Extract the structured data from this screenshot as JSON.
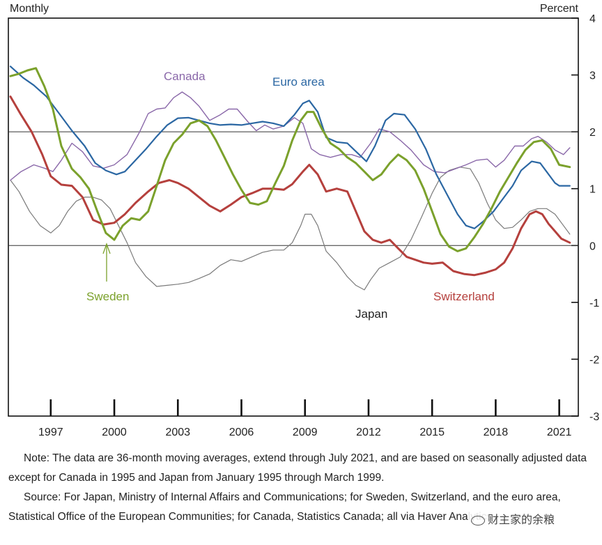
{
  "header": {
    "left_label": "Monthly",
    "right_label": "Percent"
  },
  "chart_data": {
    "type": "line",
    "title": "",
    "xlabel": "",
    "ylabel": "Percent",
    "frequency": "Monthly",
    "xlim": [
      1995.0,
      2021.9
    ],
    "ylim": [
      -3,
      4
    ],
    "x_ticks": [
      1997,
      2000,
      2003,
      2006,
      2009,
      2012,
      2015,
      2018,
      2021
    ],
    "y_ticks": [
      -3,
      -2,
      -1,
      0,
      1,
      2,
      3,
      4
    ],
    "reference_lines": [
      0,
      2
    ],
    "grid": false,
    "series": [
      {
        "name": "Canada",
        "color": "#8a68a9",
        "label_position": "upper-left",
        "x": [
          1995.1,
          1995.6,
          1996.2,
          1996.7,
          1997.1,
          1997.5,
          1998.0,
          1998.5,
          1999.0,
          1999.5,
          2000.0,
          2000.6,
          2001.2,
          2001.6,
          2002.0,
          2002.4,
          2002.8,
          2003.2,
          2003.6,
          2004.0,
          2004.5,
          2005.0,
          2005.4,
          2005.8,
          2006.3,
          2006.7,
          2007.1,
          2007.5,
          2008.0,
          2008.5,
          2008.9,
          2009.3,
          2009.7,
          2010.2,
          2010.7,
          2011.2,
          2011.6,
          2012.1,
          2012.5,
          2013.0,
          2013.5,
          2014.0,
          2014.6,
          2015.1,
          2015.6,
          2016.1,
          2016.6,
          2017.1,
          2017.6,
          2018.0,
          2018.4,
          2018.9,
          2019.3,
          2019.7,
          2020.0,
          2020.4,
          2020.8,
          2021.2,
          2021.5
        ],
        "values": [
          1.15,
          1.3,
          1.42,
          1.36,
          1.3,
          1.5,
          1.8,
          1.65,
          1.4,
          1.36,
          1.42,
          1.6,
          2.0,
          2.32,
          2.4,
          2.42,
          2.6,
          2.7,
          2.6,
          2.45,
          2.2,
          2.3,
          2.4,
          2.4,
          2.18,
          2.02,
          2.12,
          2.05,
          2.1,
          2.25,
          2.15,
          1.7,
          1.6,
          1.55,
          1.6,
          1.6,
          1.55,
          1.8,
          2.05,
          2.0,
          1.85,
          1.68,
          1.42,
          1.3,
          1.28,
          1.35,
          1.42,
          1.5,
          1.52,
          1.38,
          1.5,
          1.75,
          1.75,
          1.88,
          1.92,
          1.82,
          1.68,
          1.6,
          1.72
        ]
      },
      {
        "name": "Euro area",
        "color": "#2b67a3",
        "label_position": "upper-middle",
        "x": [
          1995.1,
          1995.7,
          1996.2,
          1996.8,
          1997.4,
          1998.0,
          1998.6,
          1999.1,
          1999.6,
          2000.1,
          2000.5,
          2001.0,
          2001.5,
          2002.0,
          2002.5,
          2003.0,
          2003.5,
          2004.0,
          2004.5,
          2005.0,
          2005.5,
          2006.0,
          2006.5,
          2007.0,
          2007.5,
          2008.0,
          2008.5,
          2008.9,
          2009.2,
          2009.6,
          2010.0,
          2010.5,
          2011.0,
          2011.5,
          2011.9,
          2012.3,
          2012.8,
          2013.2,
          2013.7,
          2014.2,
          2014.7,
          2015.2,
          2015.7,
          2016.2,
          2016.6,
          2017.0,
          2017.4,
          2017.9,
          2018.3,
          2018.8,
          2019.2,
          2019.7,
          2020.1,
          2020.4,
          2020.8,
          2021.0,
          2021.5
        ],
        "values": [
          3.15,
          2.95,
          2.82,
          2.62,
          2.32,
          2.02,
          1.75,
          1.45,
          1.32,
          1.25,
          1.3,
          1.5,
          1.7,
          1.92,
          2.12,
          2.24,
          2.25,
          2.2,
          2.15,
          2.12,
          2.13,
          2.12,
          2.15,
          2.18,
          2.15,
          2.1,
          2.3,
          2.5,
          2.55,
          2.35,
          1.9,
          1.82,
          1.8,
          1.62,
          1.48,
          1.75,
          2.2,
          2.32,
          2.3,
          2.05,
          1.7,
          1.25,
          0.9,
          0.55,
          0.35,
          0.3,
          0.42,
          0.6,
          0.8,
          1.05,
          1.32,
          1.48,
          1.45,
          1.3,
          1.1,
          1.05,
          1.05
        ]
      },
      {
        "name": "Sweden",
        "color": "#7ba12c",
        "label_position": "lower-left",
        "x": [
          1995.1,
          1995.5,
          1995.9,
          1996.3,
          1996.7,
          1997.1,
          1997.5,
          1998.0,
          1998.4,
          1998.8,
          1999.2,
          1999.6,
          2000.0,
          2000.4,
          2000.8,
          2001.2,
          2001.6,
          2002.0,
          2002.4,
          2002.8,
          2003.2,
          2003.6,
          2004.0,
          2004.4,
          2004.8,
          2005.2,
          2005.6,
          2006.0,
          2006.4,
          2006.8,
          2007.2,
          2007.6,
          2008.0,
          2008.4,
          2008.8,
          2009.1,
          2009.4,
          2009.8,
          2010.2,
          2010.6,
          2011.0,
          2011.4,
          2011.8,
          2012.2,
          2012.6,
          2013.0,
          2013.4,
          2013.8,
          2014.2,
          2014.6,
          2015.0,
          2015.4,
          2015.8,
          2016.2,
          2016.6,
          2017.0,
          2017.4,
          2017.8,
          2018.2,
          2018.6,
          2019.0,
          2019.4,
          2019.8,
          2020.2,
          2020.6,
          2021.0,
          2021.5
        ],
        "values": [
          2.98,
          3.02,
          3.08,
          3.12,
          2.8,
          2.4,
          1.75,
          1.35,
          1.2,
          1.0,
          0.6,
          0.22,
          0.1,
          0.35,
          0.48,
          0.45,
          0.6,
          1.05,
          1.5,
          1.8,
          1.95,
          2.15,
          2.2,
          2.1,
          1.85,
          1.55,
          1.25,
          0.98,
          0.75,
          0.72,
          0.78,
          1.1,
          1.4,
          1.85,
          2.2,
          2.35,
          2.35,
          2.05,
          1.8,
          1.7,
          1.55,
          1.45,
          1.3,
          1.15,
          1.25,
          1.45,
          1.6,
          1.5,
          1.32,
          1.0,
          0.6,
          0.2,
          -0.02,
          -0.1,
          -0.05,
          0.15,
          0.38,
          0.65,
          0.95,
          1.2,
          1.45,
          1.68,
          1.82,
          1.85,
          1.7,
          1.42,
          1.38
        ]
      },
      {
        "name": "Switzerland",
        "color": "#b5403d",
        "label_position": "lower-right",
        "x": [
          1995.1,
          1995.6,
          1996.1,
          1996.6,
          1997.0,
          1997.5,
          1998.0,
          1998.5,
          1999.0,
          1999.5,
          2000.0,
          2000.5,
          2001.0,
          2001.6,
          2002.1,
          2002.6,
          2003.0,
          2003.5,
          2004.0,
          2004.5,
          2005.0,
          2005.5,
          2006.0,
          2006.5,
          2007.0,
          2007.5,
          2008.0,
          2008.4,
          2008.9,
          2009.2,
          2009.6,
          2010.0,
          2010.5,
          2011.0,
          2011.4,
          2011.8,
          2012.2,
          2012.6,
          2013.0,
          2013.4,
          2013.8,
          2014.2,
          2014.6,
          2015.0,
          2015.5,
          2016.0,
          2016.5,
          2017.0,
          2017.5,
          2018.0,
          2018.4,
          2018.8,
          2019.2,
          2019.6,
          2019.9,
          2020.2,
          2020.5,
          2020.8,
          2021.1,
          2021.5
        ],
        "values": [
          2.62,
          2.3,
          2.0,
          1.6,
          1.22,
          1.07,
          1.05,
          0.85,
          0.45,
          0.37,
          0.4,
          0.55,
          0.75,
          0.95,
          1.1,
          1.15,
          1.1,
          1.0,
          0.85,
          0.7,
          0.6,
          0.72,
          0.85,
          0.92,
          1.0,
          1.0,
          0.98,
          1.08,
          1.3,
          1.42,
          1.25,
          0.95,
          1.0,
          0.95,
          0.6,
          0.25,
          0.1,
          0.05,
          0.1,
          -0.05,
          -0.2,
          -0.25,
          -0.3,
          -0.32,
          -0.3,
          -0.45,
          -0.5,
          -0.52,
          -0.48,
          -0.42,
          -0.3,
          -0.05,
          0.3,
          0.55,
          0.6,
          0.55,
          0.38,
          0.25,
          0.12,
          0.05
        ]
      },
      {
        "name": "Japan",
        "color": "#7a7a7a",
        "label_position": "lower-middle",
        "x": [
          1995.1,
          1995.5,
          1996.0,
          1996.5,
          1997.0,
          1997.4,
          1997.8,
          1998.2,
          1998.6,
          1999.0,
          1999.4,
          1999.8,
          2000.2,
          2000.6,
          2001.0,
          2001.5,
          2002.0,
          2002.5,
          2003.0,
          2003.5,
          2004.0,
          2004.5,
          2005.0,
          2005.5,
          2006.0,
          2006.5,
          2007.0,
          2007.5,
          2008.0,
          2008.4,
          2008.8,
          2009.0,
          2009.3,
          2009.6,
          2010.0,
          2010.5,
          2011.0,
          2011.4,
          2011.8,
          2012.1,
          2012.5,
          2013.0,
          2013.5,
          2014.0,
          2014.5,
          2015.0,
          2015.4,
          2015.8,
          2016.3,
          2016.8,
          2017.2,
          2017.6,
          2018.0,
          2018.4,
          2018.8,
          2019.2,
          2019.6,
          2020.0,
          2020.4,
          2020.8,
          2021.2,
          2021.5
        ],
        "values": [
          1.15,
          0.95,
          0.6,
          0.35,
          0.22,
          0.35,
          0.6,
          0.78,
          0.85,
          0.85,
          0.8,
          0.65,
          0.35,
          0.05,
          -0.3,
          -0.55,
          -0.72,
          -0.7,
          -0.68,
          -0.65,
          -0.58,
          -0.5,
          -0.35,
          -0.25,
          -0.28,
          -0.2,
          -0.12,
          -0.08,
          -0.08,
          0.05,
          0.35,
          0.55,
          0.55,
          0.35,
          -0.1,
          -0.3,
          -0.55,
          -0.7,
          -0.78,
          -0.6,
          -0.4,
          -0.3,
          -0.2,
          0.1,
          0.5,
          0.92,
          1.2,
          1.32,
          1.38,
          1.35,
          1.1,
          0.75,
          0.45,
          0.3,
          0.32,
          0.45,
          0.6,
          0.65,
          0.65,
          0.55,
          0.35,
          0.2
        ]
      }
    ]
  },
  "notes": {
    "note_label": "Note:",
    "note_text": "The data are 36-month moving averages, extend through July 2021, and are based on seasonally adjusted data except for Canada in 1995 and Japan from January 1995 through March 1999.",
    "source_label": "Source:",
    "source_text": "For Japan, Ministry of Internal Affairs and Communications; for Sweden, Switzerland, and the euro area, Statistical Office of the European Communities; for Canada, Statistics Canada; all via Haver Analytics."
  },
  "watermark": {
    "text": "财主家的余粮"
  }
}
